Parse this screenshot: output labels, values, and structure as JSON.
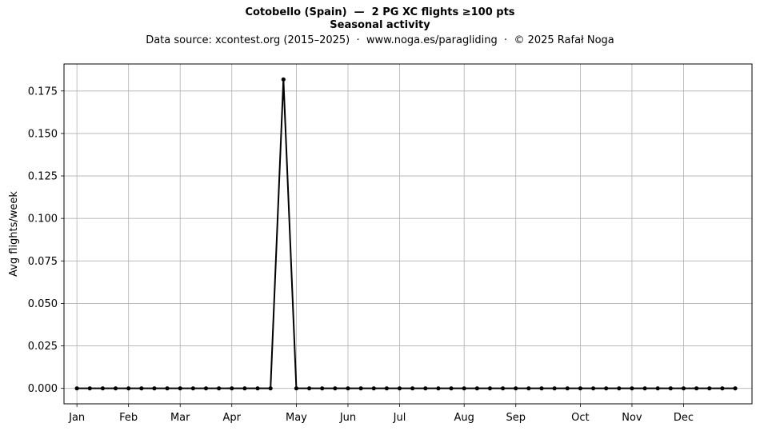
{
  "header": {
    "title": "Cotobello (Spain)  —  2 PG XC flights ≥100 pts",
    "subtitle": "Seasonal activity",
    "source": "Data source: xcontest.org (2015–2025)  ·  www.noga.es/paragliding  ·  © 2025 Rafał Noga"
  },
  "chart_data": {
    "type": "line",
    "title": "Cotobello (Spain)  —  2 PG XC flights ≥100 pts",
    "subtitle": "Seasonal activity",
    "xlabel": "",
    "ylabel": "Avg flights/week",
    "x_unit": "week of year",
    "xlim": [
      0.0,
      53.3
    ],
    "ylim": [
      -0.0091,
      0.1909
    ],
    "grid": true,
    "month_ticks": [
      {
        "label": "Jan",
        "x": 1
      },
      {
        "label": "Feb",
        "x": 5
      },
      {
        "label": "Mar",
        "x": 9
      },
      {
        "label": "Apr",
        "x": 13
      },
      {
        "label": "May",
        "x": 18
      },
      {
        "label": "Jun",
        "x": 22
      },
      {
        "label": "Jul",
        "x": 26
      },
      {
        "label": "Aug",
        "x": 31
      },
      {
        "label": "Sep",
        "x": 35
      },
      {
        "label": "Oct",
        "x": 40
      },
      {
        "label": "Nov",
        "x": 44
      },
      {
        "label": "Dec",
        "x": 48
      }
    ],
    "y_ticks": [
      {
        "label": "0.000",
        "v": 0.0
      },
      {
        "label": "0.025",
        "v": 0.025
      },
      {
        "label": "0.050",
        "v": 0.05
      },
      {
        "label": "0.075",
        "v": 0.075
      },
      {
        "label": "0.100",
        "v": 0.1
      },
      {
        "label": "0.125",
        "v": 0.125
      },
      {
        "label": "0.150",
        "v": 0.15
      },
      {
        "label": "0.175",
        "v": 0.175
      }
    ],
    "series": [
      {
        "color": "#000000",
        "x": [
          1,
          2,
          3,
          4,
          5,
          6,
          7,
          8,
          9,
          10,
          11,
          12,
          13,
          14,
          15,
          16,
          17,
          18,
          19,
          20,
          21,
          22,
          23,
          24,
          25,
          26,
          27,
          28,
          29,
          30,
          31,
          32,
          33,
          34,
          35,
          36,
          37,
          38,
          39,
          40,
          41,
          42,
          43,
          44,
          45,
          46,
          47,
          48,
          49,
          50,
          51,
          52
        ],
        "values": [
          0,
          0,
          0,
          0,
          0,
          0,
          0,
          0,
          0,
          0,
          0,
          0,
          0,
          0,
          0,
          0,
          0.1818,
          0,
          0,
          0,
          0,
          0,
          0,
          0,
          0,
          0,
          0,
          0,
          0,
          0,
          0,
          0,
          0,
          0,
          0,
          0,
          0,
          0,
          0,
          0,
          0,
          0,
          0,
          0,
          0,
          0,
          0,
          0,
          0,
          0,
          0,
          0
        ]
      }
    ]
  }
}
